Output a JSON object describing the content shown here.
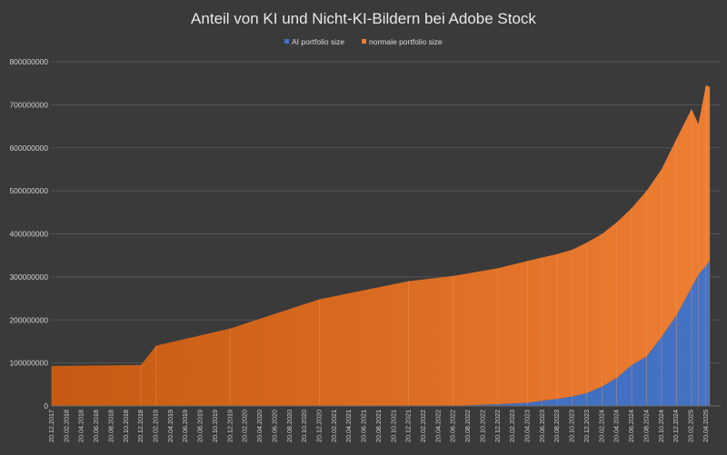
{
  "chart_data": {
    "type": "area",
    "stacked": true,
    "title": "Anteil von KI und Nicht-KI-Bildern bei Adobe Stock",
    "legend_position": "top-center",
    "grid": true,
    "ylim": [
      0,
      800000000
    ],
    "y_ticks": [
      "0",
      "100000000",
      "200000000",
      "300000000",
      "400000000",
      "500000000",
      "600000000",
      "700000000",
      "800000000"
    ],
    "x_tick_labels": [
      "20.12.2017",
      "20.02.2018",
      "20.04.2018",
      "20.06.2018",
      "20.08.2018",
      "20.10.2018",
      "20.12.2018",
      "20.02.2019",
      "20.04.2019",
      "20.06.2019",
      "20.08.2019",
      "20.10.2019",
      "20.12.2019",
      "20.02.2020",
      "20.04.2020",
      "20.06.2020",
      "20.08.2020",
      "20.10.2020",
      "20.12.2020",
      "20.02.2021",
      "20.04.2021",
      "20.06.2021",
      "20.08.2021",
      "20.10.2021",
      "20.12.2021",
      "20.02.2022",
      "20.04.2022",
      "20.06.2022",
      "20.08.2022",
      "20.10.2022",
      "20.12.2022",
      "20.02.2023",
      "20.04.2023",
      "20.06.2023",
      "20.08.2023",
      "20.10.2023",
      "20.12.2023",
      "20.02.2024",
      "20.04.2024",
      "20.06.2024",
      "20.08.2024",
      "20.10.2024",
      "20.12.2024",
      "20.02.2025",
      "20.04.2025"
    ],
    "series": [
      {
        "name": "AI portfolio size",
        "color": "#4472c4",
        "points": [
          [
            "2017-12-20",
            0
          ],
          [
            "2018-12-20",
            0
          ],
          [
            "2021-12-20",
            0
          ],
          [
            "2022-06-20",
            0
          ],
          [
            "2022-12-20",
            4000000
          ],
          [
            "2023-04-20",
            7000000
          ],
          [
            "2023-06-20",
            12000000
          ],
          [
            "2023-08-20",
            16000000
          ],
          [
            "2023-10-20",
            22000000
          ],
          [
            "2023-12-20",
            30000000
          ],
          [
            "2024-02-20",
            45000000
          ],
          [
            "2024-04-20",
            65000000
          ],
          [
            "2024-06-20",
            95000000
          ],
          [
            "2024-08-20",
            115000000
          ],
          [
            "2024-10-20",
            160000000
          ],
          [
            "2024-12-20",
            210000000
          ],
          [
            "2025-02-20",
            275000000
          ],
          [
            "2025-03-20",
            305000000
          ],
          [
            "2025-04-20",
            325000000
          ],
          [
            "2025-05-05",
            337000000
          ]
        ]
      },
      {
        "name": "normale portfolio size",
        "color": "#ed7d31",
        "points": [
          [
            "2017-12-20",
            93000000
          ],
          [
            "2018-12-20",
            95000000
          ],
          [
            "2019-02-20",
            140000000
          ],
          [
            "2019-12-20",
            180000000
          ],
          [
            "2020-12-20",
            248000000
          ],
          [
            "2021-12-20",
            290000000
          ],
          [
            "2022-06-20",
            302000000
          ],
          [
            "2022-12-20",
            316000000
          ],
          [
            "2023-04-20",
            330000000
          ],
          [
            "2023-06-20",
            333000000
          ],
          [
            "2023-08-20",
            337000000
          ],
          [
            "2023-10-20",
            341000000
          ],
          [
            "2023-12-20",
            350000000
          ],
          [
            "2024-02-20",
            355000000
          ],
          [
            "2024-04-20",
            362000000
          ],
          [
            "2024-06-20",
            365000000
          ],
          [
            "2024-08-20",
            385000000
          ],
          [
            "2024-10-20",
            390000000
          ],
          [
            "2024-12-20",
            410000000
          ],
          [
            "2025-02-20",
            415000000
          ],
          [
            "2025-03-20",
            350000000
          ],
          [
            "2025-04-20",
            420000000
          ],
          [
            "2025-05-05",
            405000000
          ]
        ]
      }
    ]
  }
}
